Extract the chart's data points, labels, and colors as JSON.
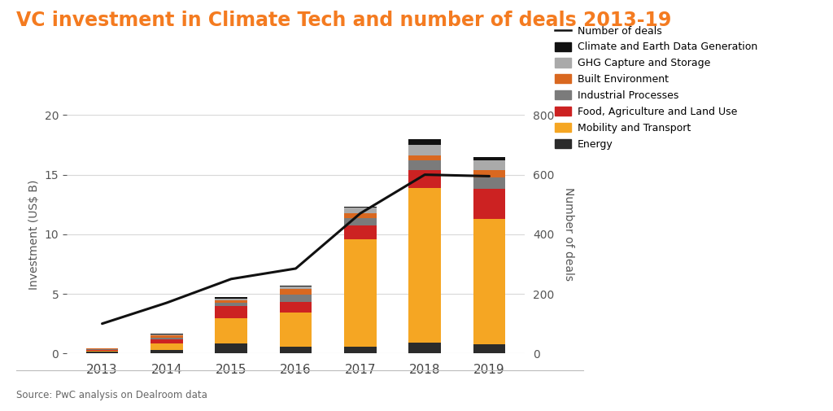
{
  "title": "VC investment in Climate Tech and number of deals 2013-19",
  "title_color": "#F47B20",
  "ylabel_left": "Investment (US$ B)",
  "ylabel_right": "Number of deals",
  "source": "Source: PwC analysis on Dealroom data",
  "background_color": "#FFFFFF",
  "years": [
    2013,
    2014,
    2015,
    2016,
    2017,
    2018,
    2019
  ],
  "ylim_left": [
    0,
    20
  ],
  "ylim_right": [
    0,
    800
  ],
  "yticks_left": [
    0,
    5,
    10,
    15,
    20
  ],
  "yticks_right": [
    0,
    200,
    400,
    600,
    800
  ],
  "segments": {
    "Energy": [
      0.15,
      0.3,
      0.85,
      0.55,
      0.55,
      0.9,
      0.8
    ],
    "Mobility and Transport": [
      0.1,
      0.55,
      2.1,
      2.9,
      9.0,
      13.0,
      10.5
    ],
    "Food, Agriculture and Land Use": [
      0.05,
      0.3,
      1.0,
      0.85,
      1.2,
      1.5,
      2.5
    ],
    "Industrial Processes": [
      0.05,
      0.2,
      0.3,
      0.65,
      0.6,
      0.8,
      1.0
    ],
    "Built Environment": [
      0.05,
      0.15,
      0.2,
      0.45,
      0.4,
      0.4,
      0.6
    ],
    "GHG Capture and Storage": [
      0.0,
      0.1,
      0.15,
      0.2,
      0.5,
      0.9,
      0.8
    ],
    "Climate and Earth Data Generation": [
      0.0,
      0.05,
      0.1,
      0.1,
      0.05,
      0.5,
      0.3
    ]
  },
  "segment_colors": {
    "Energy": "#2B2B2B",
    "Mobility and Transport": "#F5A623",
    "Food, Agriculture and Land Use": "#CC2222",
    "Industrial Processes": "#7B7B7B",
    "Built Environment": "#D96820",
    "GHG Capture and Storage": "#AAAAAA",
    "Climate and Earth Data Generation": "#111111"
  },
  "deals_line": [
    100,
    170,
    250,
    285,
    470,
    600,
    595
  ],
  "line_color": "#111111",
  "grid_color": "#D8D8D8",
  "bar_width": 0.5,
  "legend_order": [
    "Number of deals",
    "Climate and Earth Data Generation",
    "GHG Capture and Storage",
    "Built Environment",
    "Industrial Processes",
    "Food, Agriculture and Land Use",
    "Mobility and Transport",
    "Energy"
  ],
  "stack_order": [
    "Energy",
    "Mobility and Transport",
    "Food, Agriculture and Land Use",
    "Industrial Processes",
    "Built Environment",
    "GHG Capture and Storage",
    "Climate and Earth Data Generation"
  ]
}
